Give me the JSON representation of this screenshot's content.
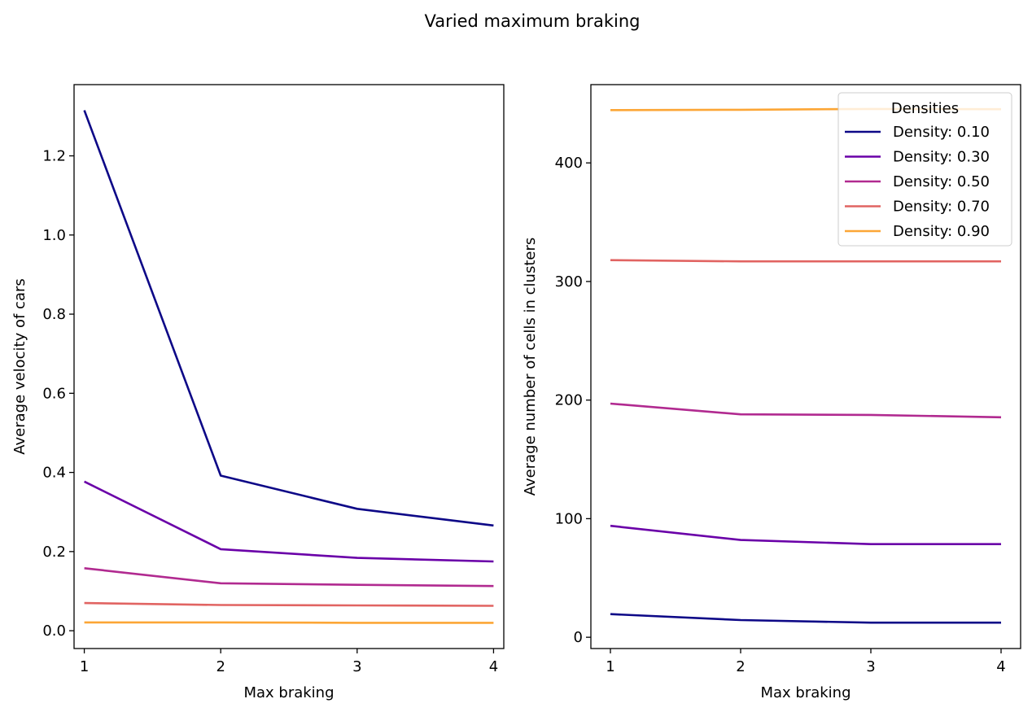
{
  "figure": {
    "suptitle": "Varied maximum braking"
  },
  "colors": {
    "Density: 0.10": "#0d0887",
    "Density: 0.30": "#6a00a8",
    "Density: 0.50": "#b12a90",
    "Density: 0.70": "#e16462",
    "Density: 0.90": "#fca636"
  },
  "chart_data": [
    {
      "type": "line",
      "x": [
        1,
        2,
        3,
        4
      ],
      "xlabel": "Max braking",
      "ylabel": "Average velocity of cars",
      "xlim": [
        0.925,
        4.075
      ],
      "ylim": [
        -0.045,
        1.38
      ],
      "xticks": [
        1,
        2,
        3,
        4
      ],
      "yticks": [
        0.0,
        0.2,
        0.4,
        0.6,
        0.8,
        1.0,
        1.2
      ],
      "ytick_labels": [
        "0.0",
        "0.2",
        "0.4",
        "0.6",
        "0.8",
        "1.0",
        "1.2"
      ],
      "grid": false,
      "series": [
        {
          "name": "Density: 0.10",
          "values": [
            1.315,
            0.392,
            0.308,
            0.266
          ]
        },
        {
          "name": "Density: 0.30",
          "values": [
            0.377,
            0.206,
            0.184,
            0.175
          ]
        },
        {
          "name": "Density: 0.50",
          "values": [
            0.158,
            0.12,
            0.116,
            0.113
          ]
        },
        {
          "name": "Density: 0.70",
          "values": [
            0.07,
            0.065,
            0.064,
            0.063
          ]
        },
        {
          "name": "Density: 0.90",
          "values": [
            0.021,
            0.021,
            0.02,
            0.02
          ]
        }
      ]
    },
    {
      "type": "line",
      "x": [
        1,
        2,
        3,
        4
      ],
      "xlabel": "Max braking",
      "ylabel": "Average number of cells in clusters",
      "xlim": [
        0.85,
        4.15
      ],
      "ylim": [
        -9.5,
        466
      ],
      "xticks": [
        1,
        2,
        3,
        4
      ],
      "yticks": [
        0,
        100,
        200,
        300,
        400
      ],
      "ytick_labels": [
        "0",
        "100",
        "200",
        "300",
        "400"
      ],
      "grid": false,
      "legend": {
        "title": "Densities",
        "placement": "top-right"
      },
      "series": [
        {
          "name": "Density: 0.10",
          "values": [
            19.5,
            14.5,
            12.3,
            12.3
          ]
        },
        {
          "name": "Density: 0.30",
          "values": [
            94,
            82,
            78.5,
            78.5
          ]
        },
        {
          "name": "Density: 0.50",
          "values": [
            197,
            188,
            187.5,
            185.5
          ]
        },
        {
          "name": "Density: 0.70",
          "values": [
            318,
            317,
            317,
            317
          ]
        },
        {
          "name": "Density: 0.90",
          "values": [
            444.5,
            444.8,
            445.5,
            445.3
          ]
        }
      ]
    }
  ]
}
